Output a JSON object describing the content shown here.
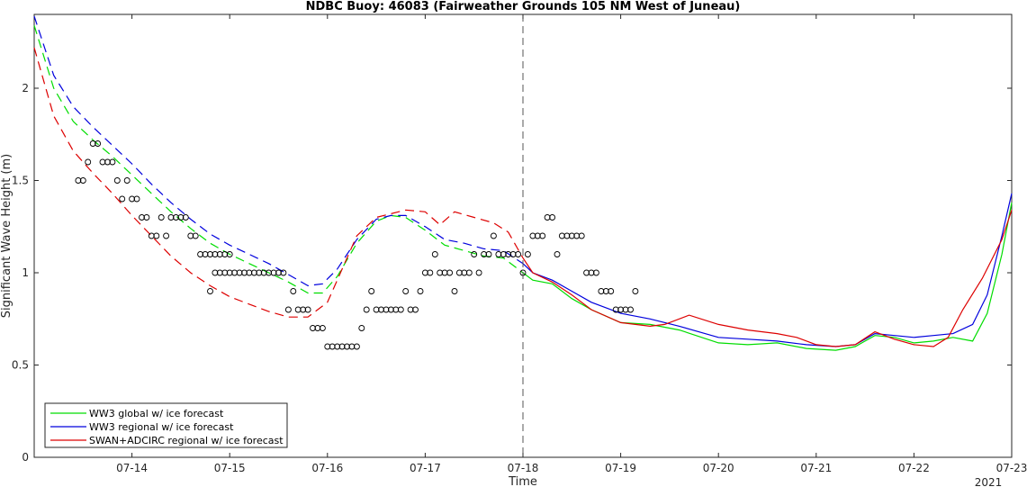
{
  "chart_data": {
    "type": "line",
    "title": "NDBC Buoy: 46083 (Fairweather Grounds 105 NM West of Juneau)",
    "xlabel": "Time",
    "ylabel": "Significant Wave Height (m)",
    "year_label": "2021",
    "x_unit": "days in July 2021",
    "xlim": [
      13.0,
      23.0
    ],
    "ylim": [
      0,
      2.4
    ],
    "x_ticks": [
      14,
      15,
      16,
      17,
      18,
      19,
      20,
      21,
      22,
      23
    ],
    "x_tick_labels": [
      "07-14",
      "07-15",
      "07-16",
      "07-17",
      "07-18",
      "07-19",
      "07-20",
      "07-21",
      "07-22",
      "07-23"
    ],
    "y_ticks": [
      0,
      0.5,
      1,
      1.5,
      2
    ],
    "y_tick_labels": [
      "0",
      "0.5",
      "1",
      "1.5",
      "2"
    ],
    "grid": false,
    "legend_position": "bottom-left",
    "vline": 18.0,
    "series": [
      {
        "name": "WW3 global w/ ice forecast",
        "color": "#00dd00",
        "points": [
          [
            13.0,
            2.34
          ],
          [
            13.2,
            2.0
          ],
          [
            13.4,
            1.82
          ],
          [
            13.6,
            1.72
          ],
          [
            13.8,
            1.63
          ],
          [
            14.0,
            1.53
          ],
          [
            14.2,
            1.43
          ],
          [
            14.4,
            1.33
          ],
          [
            14.6,
            1.24
          ],
          [
            14.8,
            1.16
          ],
          [
            15.0,
            1.1
          ],
          [
            15.2,
            1.05
          ],
          [
            15.4,
            1.0
          ],
          [
            15.6,
            0.95
          ],
          [
            15.8,
            0.89
          ],
          [
            15.95,
            0.89
          ],
          [
            16.1,
            0.98
          ],
          [
            16.3,
            1.16
          ],
          [
            16.5,
            1.28
          ],
          [
            16.65,
            1.31
          ],
          [
            16.8,
            1.3
          ],
          [
            17.0,
            1.23
          ],
          [
            17.2,
            1.15
          ],
          [
            17.4,
            1.12
          ],
          [
            17.6,
            1.09
          ],
          [
            17.8,
            1.08
          ],
          [
            18.0,
            1.0
          ],
          [
            18.1,
            0.96
          ],
          [
            18.3,
            0.94
          ],
          [
            18.5,
            0.86
          ],
          [
            18.7,
            0.8
          ],
          [
            19.0,
            0.73
          ],
          [
            19.3,
            0.72
          ],
          [
            19.6,
            0.69
          ],
          [
            20.0,
            0.62
          ],
          [
            20.3,
            0.61
          ],
          [
            20.6,
            0.62
          ],
          [
            20.9,
            0.59
          ],
          [
            21.2,
            0.58
          ],
          [
            21.4,
            0.6
          ],
          [
            21.6,
            0.66
          ],
          [
            21.8,
            0.65
          ],
          [
            22.0,
            0.62
          ],
          [
            22.2,
            0.63
          ],
          [
            22.4,
            0.65
          ],
          [
            22.6,
            0.63
          ],
          [
            22.75,
            0.78
          ],
          [
            22.9,
            1.1
          ],
          [
            23.0,
            1.38
          ]
        ],
        "dashed_until": 18.0
      },
      {
        "name": "WW3 regional w/ ice forecast",
        "color": "#0000dd",
        "points": [
          [
            13.0,
            2.39
          ],
          [
            13.2,
            2.07
          ],
          [
            13.4,
            1.9
          ],
          [
            13.6,
            1.79
          ],
          [
            13.8,
            1.69
          ],
          [
            14.0,
            1.59
          ],
          [
            14.2,
            1.48
          ],
          [
            14.4,
            1.38
          ],
          [
            14.6,
            1.29
          ],
          [
            14.8,
            1.21
          ],
          [
            15.0,
            1.15
          ],
          [
            15.2,
            1.1
          ],
          [
            15.4,
            1.05
          ],
          [
            15.6,
            0.99
          ],
          [
            15.8,
            0.93
          ],
          [
            15.95,
            0.94
          ],
          [
            16.1,
            1.02
          ],
          [
            16.3,
            1.18
          ],
          [
            16.5,
            1.29
          ],
          [
            16.65,
            1.31
          ],
          [
            16.8,
            1.31
          ],
          [
            17.0,
            1.25
          ],
          [
            17.2,
            1.18
          ],
          [
            17.4,
            1.16
          ],
          [
            17.6,
            1.13
          ],
          [
            17.8,
            1.12
          ],
          [
            18.0,
            1.05
          ],
          [
            18.1,
            1.0
          ],
          [
            18.3,
            0.96
          ],
          [
            18.5,
            0.9
          ],
          [
            18.7,
            0.84
          ],
          [
            19.0,
            0.78
          ],
          [
            19.3,
            0.75
          ],
          [
            19.6,
            0.71
          ],
          [
            20.0,
            0.65
          ],
          [
            20.3,
            0.64
          ],
          [
            20.6,
            0.63
          ],
          [
            20.9,
            0.61
          ],
          [
            21.2,
            0.6
          ],
          [
            21.4,
            0.61
          ],
          [
            21.6,
            0.67
          ],
          [
            21.8,
            0.66
          ],
          [
            22.0,
            0.65
          ],
          [
            22.2,
            0.66
          ],
          [
            22.4,
            0.67
          ],
          [
            22.6,
            0.72
          ],
          [
            22.75,
            0.88
          ],
          [
            22.9,
            1.2
          ],
          [
            23.0,
            1.43
          ]
        ],
        "dashed_until": 18.0
      },
      {
        "name": "SWAN+ADCIRC regional w/ ice forecast",
        "color": "#dd0000",
        "points": [
          [
            13.0,
            2.22
          ],
          [
            13.2,
            1.85
          ],
          [
            13.4,
            1.66
          ],
          [
            13.6,
            1.54
          ],
          [
            13.8,
            1.43
          ],
          [
            14.0,
            1.31
          ],
          [
            14.2,
            1.2
          ],
          [
            14.4,
            1.09
          ],
          [
            14.6,
            1.0
          ],
          [
            14.8,
            0.93
          ],
          [
            15.0,
            0.87
          ],
          [
            15.2,
            0.83
          ],
          [
            15.4,
            0.79
          ],
          [
            15.6,
            0.76
          ],
          [
            15.8,
            0.76
          ],
          [
            16.0,
            0.84
          ],
          [
            16.15,
            1.02
          ],
          [
            16.3,
            1.2
          ],
          [
            16.5,
            1.3
          ],
          [
            16.8,
            1.34
          ],
          [
            17.0,
            1.33
          ],
          [
            17.15,
            1.26
          ],
          [
            17.3,
            1.33
          ],
          [
            17.5,
            1.3
          ],
          [
            17.7,
            1.27
          ],
          [
            17.85,
            1.22
          ],
          [
            18.0,
            1.08
          ],
          [
            18.1,
            1.0
          ],
          [
            18.3,
            0.95
          ],
          [
            18.5,
            0.88
          ],
          [
            18.7,
            0.8
          ],
          [
            19.0,
            0.73
          ],
          [
            19.3,
            0.71
          ],
          [
            19.45,
            0.72
          ],
          [
            19.7,
            0.77
          ],
          [
            20.0,
            0.72
          ],
          [
            20.3,
            0.69
          ],
          [
            20.6,
            0.67
          ],
          [
            20.8,
            0.65
          ],
          [
            21.0,
            0.61
          ],
          [
            21.2,
            0.6
          ],
          [
            21.4,
            0.61
          ],
          [
            21.6,
            0.68
          ],
          [
            21.8,
            0.64
          ],
          [
            22.0,
            0.61
          ],
          [
            22.2,
            0.6
          ],
          [
            22.35,
            0.65
          ],
          [
            22.5,
            0.8
          ],
          [
            22.7,
            0.97
          ],
          [
            22.9,
            1.18
          ],
          [
            23.0,
            1.34
          ]
        ],
        "dashed_until": 18.0
      }
    ],
    "observations": {
      "name": "NDBC buoy observations",
      "points": [
        [
          13.45,
          1.5
        ],
        [
          13.5,
          1.5
        ],
        [
          13.55,
          1.6
        ],
        [
          13.6,
          1.7
        ],
        [
          13.65,
          1.7
        ],
        [
          13.7,
          1.6
        ],
        [
          13.75,
          1.6
        ],
        [
          13.8,
          1.6
        ],
        [
          13.85,
          1.5
        ],
        [
          13.9,
          1.4
        ],
        [
          13.95,
          1.5
        ],
        [
          14.0,
          1.4
        ],
        [
          14.05,
          1.4
        ],
        [
          14.1,
          1.3
        ],
        [
          14.15,
          1.3
        ],
        [
          14.2,
          1.2
        ],
        [
          14.25,
          1.2
        ],
        [
          14.3,
          1.3
        ],
        [
          14.35,
          1.2
        ],
        [
          14.4,
          1.3
        ],
        [
          14.45,
          1.3
        ],
        [
          14.5,
          1.3
        ],
        [
          14.55,
          1.3
        ],
        [
          14.6,
          1.2
        ],
        [
          14.65,
          1.2
        ],
        [
          14.7,
          1.1
        ],
        [
          14.75,
          1.1
        ],
        [
          14.8,
          1.1
        ],
        [
          14.85,
          1.1
        ],
        [
          14.9,
          1.1
        ],
        [
          14.95,
          1.1
        ],
        [
          15.0,
          1.1
        ],
        [
          14.8,
          0.9
        ],
        [
          14.85,
          1.0
        ],
        [
          14.9,
          1.0
        ],
        [
          14.95,
          1.0
        ],
        [
          15.0,
          1.0
        ],
        [
          15.05,
          1.0
        ],
        [
          15.1,
          1.0
        ],
        [
          15.15,
          1.0
        ],
        [
          15.2,
          1.0
        ],
        [
          15.25,
          1.0
        ],
        [
          15.3,
          1.0
        ],
        [
          15.35,
          1.0
        ],
        [
          15.4,
          1.0
        ],
        [
          15.45,
          1.0
        ],
        [
          15.5,
          1.0
        ],
        [
          15.55,
          1.0
        ],
        [
          15.6,
          0.8
        ],
        [
          15.65,
          0.9
        ],
        [
          15.7,
          0.8
        ],
        [
          15.75,
          0.8
        ],
        [
          15.8,
          0.8
        ],
        [
          15.85,
          0.7
        ],
        [
          15.9,
          0.7
        ],
        [
          15.95,
          0.7
        ],
        [
          16.0,
          0.6
        ],
        [
          16.05,
          0.6
        ],
        [
          16.1,
          0.6
        ],
        [
          16.15,
          0.6
        ],
        [
          16.2,
          0.6
        ],
        [
          16.25,
          0.6
        ],
        [
          16.3,
          0.6
        ],
        [
          16.35,
          0.7
        ],
        [
          16.4,
          0.8
        ],
        [
          16.45,
          0.9
        ],
        [
          16.5,
          0.8
        ],
        [
          16.55,
          0.8
        ],
        [
          16.6,
          0.8
        ],
        [
          16.65,
          0.8
        ],
        [
          16.7,
          0.8
        ],
        [
          16.75,
          0.8
        ],
        [
          16.8,
          0.9
        ],
        [
          16.85,
          0.8
        ],
        [
          16.9,
          0.8
        ],
        [
          16.95,
          0.9
        ],
        [
          17.0,
          1.0
        ],
        [
          17.05,
          1.0
        ],
        [
          17.1,
          1.1
        ],
        [
          17.15,
          1.0
        ],
        [
          17.2,
          1.0
        ],
        [
          17.25,
          1.0
        ],
        [
          17.3,
          0.9
        ],
        [
          17.35,
          1.0
        ],
        [
          17.4,
          1.0
        ],
        [
          17.45,
          1.0
        ],
        [
          17.5,
          1.1
        ],
        [
          17.55,
          1.0
        ],
        [
          17.6,
          1.1
        ],
        [
          17.65,
          1.1
        ],
        [
          17.7,
          1.2
        ],
        [
          17.75,
          1.1
        ],
        [
          17.8,
          1.1
        ],
        [
          17.85,
          1.1
        ],
        [
          17.9,
          1.1
        ],
        [
          17.95,
          1.1
        ],
        [
          18.0,
          1.0
        ],
        [
          18.05,
          1.1
        ],
        [
          18.1,
          1.2
        ],
        [
          18.15,
          1.2
        ],
        [
          18.2,
          1.2
        ],
        [
          18.25,
          1.3
        ],
        [
          18.3,
          1.3
        ],
        [
          18.35,
          1.1
        ],
        [
          18.4,
          1.2
        ],
        [
          18.45,
          1.2
        ],
        [
          18.5,
          1.2
        ],
        [
          18.55,
          1.2
        ],
        [
          18.6,
          1.2
        ],
        [
          18.65,
          1.0
        ],
        [
          18.7,
          1.0
        ],
        [
          18.75,
          1.0
        ],
        [
          18.8,
          0.9
        ],
        [
          18.85,
          0.9
        ],
        [
          18.9,
          0.9
        ],
        [
          18.95,
          0.8
        ],
        [
          19.0,
          0.8
        ],
        [
          19.05,
          0.8
        ],
        [
          19.1,
          0.8
        ],
        [
          19.15,
          0.9
        ]
      ]
    }
  }
}
